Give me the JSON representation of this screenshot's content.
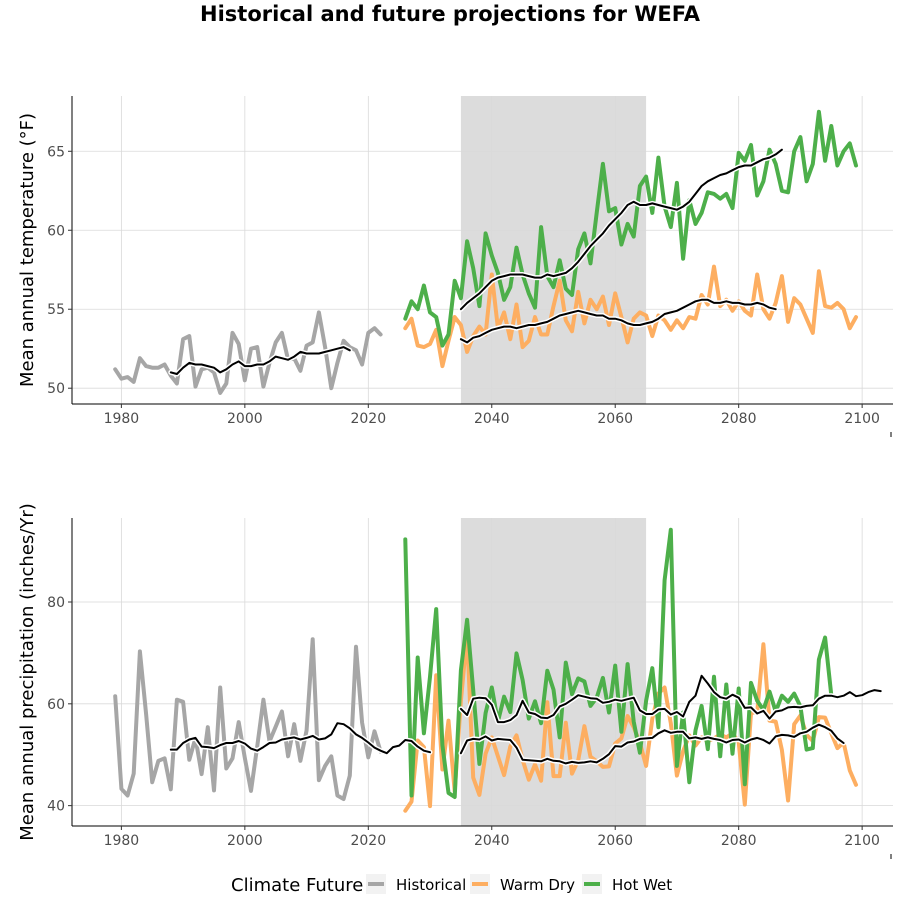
{
  "title": "Historical and future projections for WEFA",
  "legend": {
    "title": "Climate Future",
    "placement": "bottom",
    "items": [
      {
        "label": "Historical",
        "color": "#a6a6a6"
      },
      {
        "label": "Warm Dry",
        "color": "#fdae61"
      },
      {
        "label": "Hot Wet",
        "color": "#4daf4a"
      }
    ]
  },
  "period_band": {
    "start": 2035,
    "end": 2065,
    "color": "#dcdcdc"
  },
  "chart_data": [
    {
      "type": "line",
      "ylabel": "Mean annual temperature (°F)",
      "xlim": [
        1972,
        2105
      ],
      "ylim": [
        49,
        68.5
      ],
      "xticks": [
        1980,
        2000,
        2020,
        2040,
        2060,
        2080,
        2100
      ],
      "yticks": [
        50,
        55,
        60,
        65
      ],
      "grid": true,
      "series": [
        {
          "name": "Historical",
          "color": "#a6a6a6",
          "x_start": 1979,
          "values": [
            51.2,
            50.6,
            50.7,
            50.4,
            51.9,
            51.4,
            51.3,
            51.3,
            51.5,
            50.8,
            50.3,
            53.1,
            53.3,
            50.1,
            51.2,
            51.3,
            51.0,
            49.7,
            50.3,
            53.5,
            52.8,
            50.5,
            52.5,
            52.6,
            50.1,
            51.6,
            52.9,
            53.5,
            51.8,
            51.9,
            51.1,
            52.7,
            52.9,
            54.8,
            52.6,
            50.0,
            51.6,
            53.0,
            52.6,
            52.4,
            51.5,
            53.5,
            53.8,
            53.4
          ]
        },
        {
          "name": "Warm Dry",
          "color": "#fdae61",
          "x_start": 2026,
          "values": [
            53.8,
            54.4,
            52.7,
            52.6,
            52.8,
            53.7,
            51.4,
            53.0,
            54.5,
            54.0,
            52.3,
            53.3,
            53.9,
            53.4,
            57.2,
            53.8,
            54.8,
            53.1,
            55.3,
            52.6,
            53.0,
            54.5,
            53.4,
            53.4,
            55.2,
            56.8,
            54.3,
            53.6,
            56.1,
            54.1,
            55.6,
            55.0,
            55.8,
            54.0,
            56.0,
            54.5,
            52.9,
            54.4,
            54.8,
            54.6,
            53.3,
            54.6,
            54.3,
            53.7,
            54.3,
            53.8,
            54.5,
            54.4,
            55.9,
            55.3,
            57.7,
            55.2,
            55.6,
            54.9,
            55.5,
            54.9,
            54.6,
            57.2,
            55.0,
            54.4,
            55.4,
            57.1,
            54.2,
            55.7,
            55.3,
            54.4,
            53.5,
            57.4,
            55.2,
            55.1,
            55.4,
            55.0,
            53.8,
            54.5
          ]
        },
        {
          "name": "Hot Wet",
          "color": "#4daf4a",
          "x_start": 2026,
          "values": [
            54.4,
            55.5,
            55.0,
            56.5,
            54.8,
            54.5,
            52.7,
            53.4,
            56.8,
            55.7,
            59.3,
            57.6,
            55.2,
            59.8,
            58.4,
            57.3,
            55.6,
            56.4,
            58.9,
            57.2,
            56.0,
            55.1,
            60.2,
            57.1,
            56.4,
            58.1,
            56.3,
            55.9,
            58.8,
            59.8,
            57.9,
            61.1,
            64.2,
            61.2,
            61.4,
            59.1,
            60.4,
            59.6,
            62.8,
            63.4,
            61.1,
            64.6,
            61.5,
            60.2,
            63.0,
            58.2,
            61.9,
            60.4,
            61.1,
            62.4,
            62.3,
            62.0,
            62.3,
            61.4,
            64.9,
            64.4,
            65.4,
            62.2,
            63.1,
            65.1,
            64.2,
            62.5,
            62.4,
            65.0,
            65.9,
            63.1,
            64.2,
            67.5,
            64.4,
            66.6,
            64.1,
            65.0,
            65.5,
            64.1
          ]
        },
        {
          "name": "",
          "color": "#000000",
          "x_start": 1988,
          "smooth": true,
          "values": [
            51.0,
            50.9,
            51.3,
            51.6,
            51.5,
            51.5,
            51.4,
            51.3,
            51.0,
            51.2,
            51.5,
            51.7,
            51.4,
            51.4,
            51.5,
            51.5,
            51.7,
            52.0,
            51.9,
            51.8,
            52.0,
            52.3,
            52.2,
            52.2,
            52.2,
            52.3,
            52.4,
            52.5,
            52.6,
            52.4
          ]
        },
        {
          "name": "",
          "color": "#000000",
          "x_start": 2035,
          "smooth": true,
          "values": [
            53.1,
            52.9,
            53.2,
            53.3,
            53.5,
            53.7,
            53.8,
            53.9,
            53.9,
            53.8,
            53.9,
            54.0,
            54.0,
            54.1,
            54.2,
            54.4,
            54.6,
            54.7,
            54.8,
            54.9,
            54.8,
            54.7,
            54.6,
            54.6,
            54.4,
            54.4,
            54.3,
            54.1,
            54.0,
            54.0,
            54.1,
            54.2,
            54.4,
            54.7,
            54.8,
            54.9,
            55.1,
            55.3,
            55.5,
            55.6,
            55.6,
            55.4,
            55.4,
            55.5,
            55.4,
            55.4,
            55.3,
            55.3,
            55.4,
            55.3,
            55.1,
            55.0
          ]
        },
        {
          "name": "",
          "color": "#000000",
          "x_start": 2035,
          "smooth": true,
          "values": [
            55.0,
            55.4,
            55.7,
            56.0,
            56.4,
            56.8,
            57.0,
            57.1,
            57.2,
            57.2,
            57.2,
            57.1,
            57.0,
            57.0,
            57.2,
            57.1,
            57.2,
            57.3,
            57.6,
            58.0,
            58.5,
            59.0,
            59.4,
            59.8,
            60.3,
            60.7,
            61.1,
            61.6,
            61.8,
            61.6,
            61.6,
            61.7,
            61.6,
            61.5,
            61.4,
            61.3,
            61.5,
            61.8,
            62.3,
            62.8,
            63.1,
            63.3,
            63.5,
            63.6,
            63.8,
            64.0,
            64.1,
            64.1,
            64.3,
            64.5,
            64.6,
            64.8,
            65.1
          ]
        }
      ]
    },
    {
      "type": "line",
      "ylabel": "Mean annual precipitation (inches/Yr)",
      "xlim": [
        1972,
        2105
      ],
      "ylim": [
        36,
        96.5
      ],
      "xticks": [
        1980,
        2000,
        2020,
        2040,
        2060,
        2080,
        2100
      ],
      "yticks": [
        40,
        60,
        80
      ],
      "grid": true,
      "series": [
        {
          "name": "Historical",
          "color": "#a6a6a6",
          "x_start": 1979,
          "values": [
            61.5,
            43.3,
            42.0,
            46.3,
            70.3,
            58.0,
            44.6,
            48.8,
            49.3,
            43.2,
            60.8,
            60.4,
            49.0,
            53.3,
            46.2,
            55.4,
            43.0,
            63.2,
            47.3,
            49.3,
            56.4,
            49.4,
            42.9,
            51.6,
            60.8,
            52.6,
            55.5,
            58.5,
            49.7,
            56.0,
            48.8,
            54.8,
            72.7,
            45.0,
            47.8,
            49.7,
            42.0,
            41.3,
            45.9,
            71.2,
            56.3,
            49.5,
            54.6,
            50.6
          ]
        },
        {
          "name": "Warm Dry",
          "color": "#fdae61",
          "x_start": 2026,
          "values": [
            39.0,
            40.8,
            52.8,
            51.5,
            39.9,
            65.6,
            47.1,
            56.7,
            42.8,
            60.6,
            73.7,
            45.5,
            42.1,
            50.2,
            53.4,
            49.7,
            46.0,
            51.6,
            53.8,
            49.0,
            45.1,
            48.1,
            44.9,
            60.3,
            45.8,
            45.8,
            56.3,
            46.3,
            48.9,
            55.6,
            49.6,
            48.7,
            47.6,
            47.7,
            52.2,
            53.2,
            57.6,
            55.4,
            52.3,
            47.8,
            57.1,
            62.0,
            63.2,
            56.2,
            45.9,
            50.7,
            53.8,
            51.8,
            53.4,
            52.7,
            53.2,
            54.0,
            53.4,
            54.2,
            52.5,
            40.2,
            58.2,
            58.4,
            71.7,
            56.7,
            56.5,
            50.9,
            41.0,
            56.0,
            57.7,
            53.9,
            52.7,
            57.4,
            57.3,
            54.2,
            51.3,
            52.4,
            46.9,
            44.1
          ]
        },
        {
          "name": "Hot Wet",
          "color": "#4daf4a",
          "x_start": 2026,
          "values": [
            92.3,
            42.0,
            69.1,
            54.2,
            65.3,
            78.6,
            51.9,
            42.5,
            41.7,
            66.6,
            76.5,
            62.7,
            48.2,
            58.2,
            63.2,
            56.5,
            61.4,
            58.4,
            69.9,
            64.7,
            57.1,
            60.5,
            56.2,
            66.5,
            62.8,
            53.4,
            68.1,
            61.9,
            65.0,
            64.4,
            59.6,
            61.2,
            65.1,
            58.3,
            67.5,
            54.5,
            67.8,
            56.5,
            50.4,
            60.6,
            67.0,
            55.4,
            84.3,
            94.2,
            47.8,
            58.3,
            44.6,
            54.8,
            59.6,
            51.1,
            65.3,
            49.7,
            63.8,
            50.2,
            63.0,
            44.2,
            64.1,
            60.6,
            58.8,
            62.4,
            58.5,
            61.6,
            60.4,
            62.0,
            59.5,
            51.0,
            51.3,
            68.7,
            73.0,
            61.7
          ]
        },
        {
          "name": "",
          "color": "#000000",
          "x_start": 1988,
          "smooth": true,
          "values": [
            51.0,
            51.0,
            52.3,
            53.0,
            53.3,
            51.6,
            51.5,
            51.3,
            51.9,
            52.3,
            52.3,
            52.7,
            52.2,
            51.2,
            50.8,
            51.5,
            52.3,
            52.4,
            53.0,
            53.2,
            53.4,
            53.0,
            53.3,
            53.7,
            53.0,
            53.2,
            54.0,
            56.2,
            56.0,
            55.2,
            54.0,
            53.3,
            52.4,
            51.4,
            50.8,
            50.3,
            51.5,
            51.8,
            52.9,
            52.7,
            51.6,
            50.8,
            50.5
          ]
        },
        {
          "name": "",
          "color": "#000000",
          "x_start": 2035,
          "smooth": true,
          "values": [
            50.3,
            52.8,
            53.1,
            53.0,
            53.6,
            52.8,
            53.1,
            53.0,
            52.9,
            51.4,
            49.0,
            48.9,
            48.8,
            48.7,
            49.2,
            48.8,
            48.7,
            48.3,
            48.6,
            48.4,
            48.5,
            48.7,
            48.5,
            49.2,
            50.1,
            51.7,
            51.6,
            52.4,
            52.6,
            53.1,
            53.2,
            53.3,
            54.2,
            54.8,
            54.3,
            54.5,
            54.5,
            53.2,
            53.4,
            53.1,
            53.4,
            53.1,
            52.9,
            52.4,
            52.9,
            53.0,
            52.4,
            53.0,
            53.3,
            52.9,
            52.2,
            53.6,
            53.9,
            53.8,
            53.5,
            54.2,
            54.5,
            55.3,
            55.9,
            55.4,
            54.7,
            53.2,
            52.3
          ]
        },
        {
          "name": "",
          "color": "#000000",
          "x_start": 2035,
          "smooth": true,
          "values": [
            59.0,
            57.8,
            61.0,
            61.2,
            61.1,
            59.8,
            56.4,
            56.4,
            56.8,
            57.8,
            60.6,
            58.3,
            58.0,
            57.3,
            57.2,
            57.8,
            59.5,
            60.0,
            60.8,
            61.7,
            61.4,
            61.1,
            61.0,
            60.2,
            60.4,
            60.8,
            60.6,
            60.9,
            61.2,
            58.7,
            58.0,
            58.0,
            58.9,
            59.0,
            57.9,
            58.4,
            57.5,
            60.4,
            61.6,
            65.5,
            64.0,
            62.3,
            61.3,
            61.0,
            61.8,
            61.2,
            59.2,
            59.3,
            58.1,
            58.6,
            57.1,
            58.5,
            58.7,
            59.3,
            59.4,
            59.3,
            59.6,
            59.7,
            61.0,
            61.6,
            61.6,
            61.3,
            61.6,
            62.3,
            61.5,
            61.7,
            62.3,
            62.7,
            62.5
          ]
        }
      ]
    }
  ]
}
